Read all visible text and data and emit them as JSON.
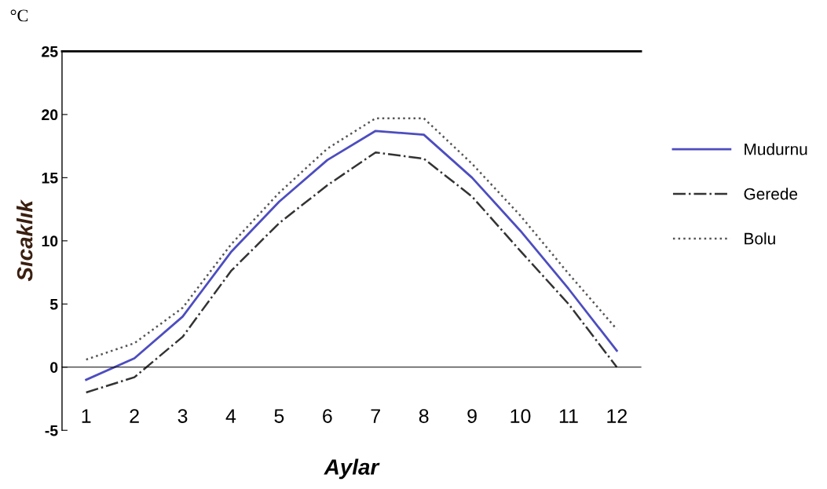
{
  "chart_data": {
    "type": "line",
    "xlabel": "Aylar",
    "ylabel": "Sıcaklık",
    "annotations": [
      "°C"
    ],
    "categories": [
      "1",
      "2",
      "3",
      "4",
      "5",
      "6",
      "7",
      "8",
      "9",
      "10",
      "11",
      "12"
    ],
    "series": [
      {
        "name": "Mudurnu",
        "color": "#4d4dc0",
        "line_style": "solid",
        "values": [
          -1.0,
          0.7,
          4.0,
          9.1,
          13.1,
          16.4,
          18.7,
          18.4,
          15.0,
          10.8,
          6.2,
          1.3
        ]
      },
      {
        "name": "Gerede",
        "color": "#333333",
        "line_style": "dashdot",
        "values": [
          -2.0,
          -0.8,
          2.4,
          7.6,
          11.4,
          14.4,
          17.0,
          16.5,
          13.5,
          9.2,
          5.0,
          0.0
        ]
      },
      {
        "name": "Bolu",
        "color": "#555555",
        "line_style": "dotted",
        "values": [
          0.6,
          1.9,
          4.7,
          9.7,
          13.8,
          17.3,
          19.7,
          19.7,
          16.1,
          12.0,
          7.4,
          3.0
        ]
      }
    ],
    "ylim": [
      -5,
      25
    ],
    "yticks": [
      -5,
      0,
      5,
      10,
      15,
      20,
      25
    ],
    "grid": false,
    "legend": "right",
    "marker": "none"
  }
}
